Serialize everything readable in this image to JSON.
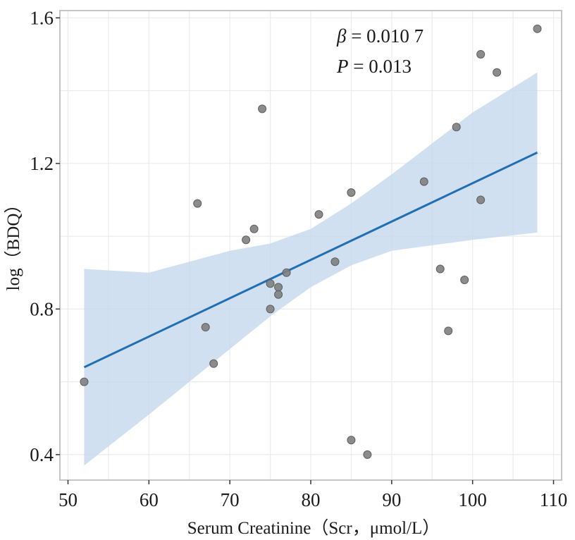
{
  "chart_data": {
    "type": "scatter",
    "title": "",
    "xlabel": "Serum Creatinine（Scr，μmol/L）",
    "ylabel": "log（BDQ）",
    "xlim": [
      49,
      111
    ],
    "ylim": [
      0.33,
      1.62
    ],
    "x_ticks": [
      50,
      60,
      70,
      80,
      90,
      100,
      110
    ],
    "y_ticks": [
      0.4,
      0.8,
      1.2,
      1.6
    ],
    "y_tick_labels": [
      "0.4",
      "0.8",
      "1.2",
      "1.6"
    ],
    "grid": true,
    "colors": {
      "point": "#808080",
      "point_stroke": "#5e5e5e",
      "fit_line": "#1f6fb2",
      "ci_band": "#c4d8ec",
      "grid": "#ebebeb",
      "frame": "#b3b3b3"
    },
    "points": [
      {
        "x": 52,
        "y": 0.6
      },
      {
        "x": 66,
        "y": 1.09
      },
      {
        "x": 67,
        "y": 0.75
      },
      {
        "x": 68,
        "y": 0.65
      },
      {
        "x": 72,
        "y": 0.99
      },
      {
        "x": 73,
        "y": 1.02
      },
      {
        "x": 74,
        "y": 1.35
      },
      {
        "x": 75,
        "y": 0.87
      },
      {
        "x": 75,
        "y": 0.8
      },
      {
        "x": 76,
        "y": 0.86
      },
      {
        "x": 76,
        "y": 0.84
      },
      {
        "x": 77,
        "y": 0.9
      },
      {
        "x": 81,
        "y": 1.06
      },
      {
        "x": 83,
        "y": 0.93
      },
      {
        "x": 85,
        "y": 1.12
      },
      {
        "x": 85,
        "y": 0.44
      },
      {
        "x": 87,
        "y": 0.4
      },
      {
        "x": 94,
        "y": 1.15
      },
      {
        "x": 96,
        "y": 0.91
      },
      {
        "x": 97,
        "y": 0.74
      },
      {
        "x": 98,
        "y": 1.3
      },
      {
        "x": 99,
        "y": 0.88
      },
      {
        "x": 101,
        "y": 1.5
      },
      {
        "x": 101,
        "y": 1.1
      },
      {
        "x": 103,
        "y": 1.45
      },
      {
        "x": 108,
        "y": 1.57
      }
    ],
    "fit_line": {
      "x": [
        52,
        108
      ],
      "y": [
        0.64,
        1.23
      ]
    },
    "confidence_band": {
      "x": [
        52,
        60,
        70,
        75,
        80,
        85,
        90,
        100,
        108
      ],
      "upper": [
        0.91,
        0.9,
        0.96,
        0.98,
        1.02,
        1.09,
        1.17,
        1.34,
        1.45
      ],
      "lower": [
        0.37,
        0.51,
        0.69,
        0.78,
        0.86,
        0.92,
        0.96,
        0.99,
        1.01
      ]
    },
    "annotations": {
      "beta_symbol": "β",
      "beta_value": " = 0.010 7",
      "p_symbol": "P",
      "p_value": " = 0.013"
    }
  }
}
